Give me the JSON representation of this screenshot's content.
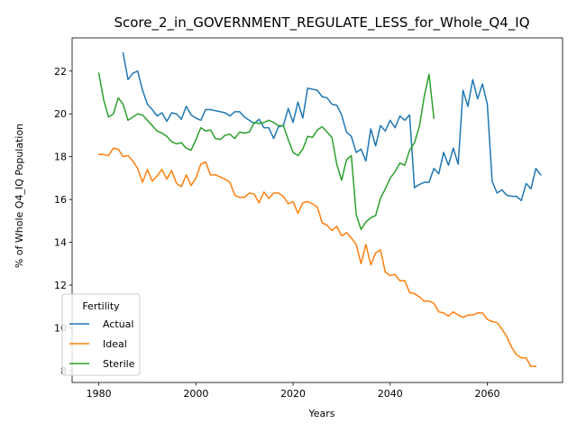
{
  "chart_data": {
    "type": "line",
    "title": "Score_2_in_GOVERNMENT_REGULATE_LESS_for_Whole_Q4_IQ",
    "xlabel": "Years",
    "ylabel": "% of Whole Q4_IQ Population",
    "xlim": [
      1974.5,
      2075.5
    ],
    "ylim": [
      7.45,
      23.55
    ],
    "x_ticks": [
      1980,
      2000,
      2020,
      2040,
      2060
    ],
    "y_ticks": [
      8,
      10,
      12,
      14,
      16,
      18,
      20,
      22
    ],
    "legend": {
      "title": "Fertility",
      "position": "lower-left"
    },
    "series": [
      {
        "name": "Actual",
        "color": "#1f77b4",
        "start_year": 1985,
        "values": [
          22.85,
          21.6,
          21.9,
          22.0,
          21.1,
          20.45,
          20.2,
          19.9,
          20.05,
          19.65,
          20.05,
          20.0,
          19.75,
          20.35,
          19.95,
          19.8,
          19.7,
          20.2,
          20.2,
          20.15,
          20.1,
          20.05,
          19.9,
          20.1,
          20.1,
          19.85,
          19.7,
          19.55,
          19.75,
          19.35,
          19.35,
          18.85,
          19.4,
          19.45,
          20.25,
          19.6,
          20.55,
          19.8,
          21.2,
          21.15,
          21.1,
          20.8,
          20.75,
          20.45,
          20.4,
          19.95,
          19.15,
          18.95,
          18.2,
          18.35,
          17.8,
          19.3,
          18.5,
          19.45,
          19.2,
          19.7,
          19.35,
          19.9,
          19.7,
          19.95,
          16.55,
          16.7,
          16.8,
          16.8,
          17.45,
          17.2,
          18.2,
          17.6,
          18.4,
          17.65,
          21.1,
          20.35,
          21.6,
          20.7,
          21.4,
          20.45,
          16.85,
          16.3,
          16.45,
          16.2,
          16.15,
          16.15,
          15.95,
          16.75,
          16.5,
          17.45,
          17.15
        ]
      },
      {
        "name": "Ideal",
        "color": "#ff7f0e",
        "start_year": 1980,
        "values": [
          18.1,
          18.1,
          18.05,
          18.4,
          18.35,
          18.0,
          18.05,
          17.8,
          17.45,
          16.8,
          17.4,
          16.85,
          17.1,
          17.4,
          16.95,
          17.35,
          16.75,
          16.6,
          17.15,
          16.65,
          17.0,
          17.65,
          17.75,
          17.15,
          17.15,
          17.05,
          16.95,
          16.8,
          16.2,
          16.1,
          16.1,
          16.3,
          16.25,
          15.85,
          16.35,
          16.05,
          16.3,
          16.3,
          16.15,
          15.8,
          15.9,
          15.35,
          15.85,
          15.9,
          15.8,
          15.65,
          14.9,
          14.8,
          14.55,
          14.75,
          14.3,
          14.45,
          14.2,
          13.9,
          13.0,
          13.9,
          12.95,
          13.5,
          13.65,
          12.6,
          12.45,
          12.5,
          12.2,
          12.2,
          11.65,
          11.6,
          11.45,
          11.25,
          11.25,
          11.15,
          10.75,
          10.7,
          10.55,
          10.75,
          10.6,
          10.5,
          10.6,
          10.6,
          10.7,
          10.7,
          10.4,
          10.3,
          10.25,
          9.95,
          9.6,
          9.1,
          8.75,
          8.6,
          8.6,
          8.2,
          8.2
        ]
      },
      {
        "name": "Sterile",
        "color": "#2ca02c",
        "start_year": 1980,
        "values": [
          21.9,
          20.65,
          19.85,
          20.0,
          20.75,
          20.45,
          19.7,
          19.85,
          20.0,
          19.95,
          19.7,
          19.45,
          19.2,
          19.1,
          18.95,
          18.7,
          18.6,
          18.65,
          18.4,
          18.3,
          18.8,
          19.35,
          19.2,
          19.25,
          18.85,
          18.8,
          19.0,
          19.05,
          18.85,
          19.15,
          19.1,
          19.15,
          19.6,
          19.55,
          19.6,
          19.7,
          19.6,
          19.45,
          19.45,
          18.8,
          18.2,
          18.05,
          18.35,
          18.95,
          18.9,
          19.25,
          19.4,
          19.15,
          18.9,
          17.65,
          16.9,
          17.85,
          18.05,
          15.3,
          14.6,
          14.95,
          15.15,
          15.25,
          16.05,
          16.5,
          17.0,
          17.3,
          17.7,
          17.6,
          18.3,
          18.65,
          19.4,
          20.8,
          21.85,
          19.8
        ]
      }
    ]
  }
}
